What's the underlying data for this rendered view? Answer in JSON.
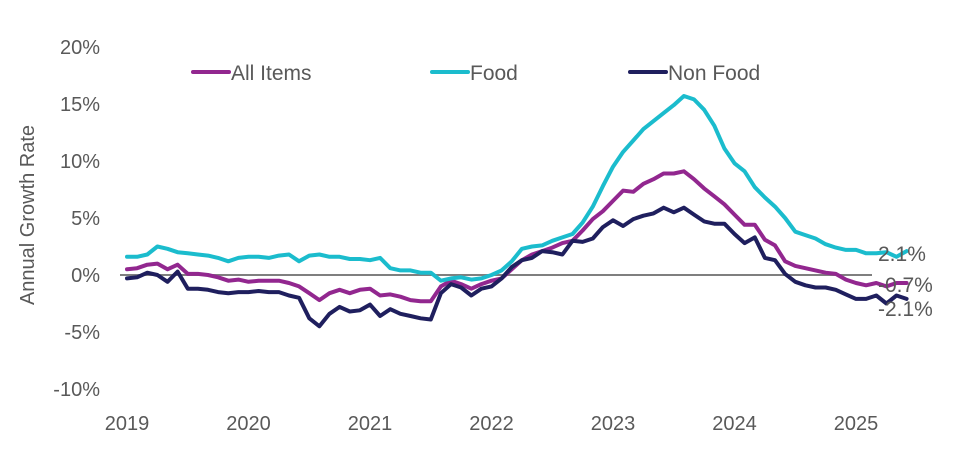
{
  "chart_data": {
    "type": "line",
    "title": "",
    "xlabel": "",
    "ylabel": "Annual Growth Rate",
    "ylim": [
      -10,
      20
    ],
    "yticks": [
      20,
      15,
      10,
      5,
      0,
      -5,
      -10
    ],
    "ytick_labels": [
      "20%",
      "15%",
      "10%",
      "5%",
      "0%",
      "-5%",
      "-10%"
    ],
    "xlim_months": [
      0,
      74
    ],
    "xticks": [
      "2019",
      "2020",
      "2021",
      "2022",
      "2023",
      "2024",
      "2025"
    ],
    "x_start": "Jan 2019",
    "x_frequency": "monthly",
    "grid": false,
    "zero_line": true,
    "legend": {
      "placement": "top",
      "orientation": "horizontal"
    },
    "series": [
      {
        "name": "All Items",
        "color": "#92278F",
        "end_label": "-0.7%",
        "values": [
          0.5,
          0.6,
          0.9,
          1.0,
          0.5,
          0.9,
          0.1,
          0.1,
          0.0,
          -0.2,
          -0.5,
          -0.4,
          -0.6,
          -0.5,
          -0.5,
          -0.5,
          -0.7,
          -1.0,
          -1.6,
          -2.2,
          -1.6,
          -1.3,
          -1.6,
          -1.3,
          -1.2,
          -1.8,
          -1.7,
          -1.9,
          -2.2,
          -2.3,
          -2.3,
          -1.0,
          -0.5,
          -0.8,
          -1.2,
          -0.8,
          -0.5,
          -0.3,
          0.5,
          1.3,
          1.8,
          2.1,
          2.4,
          2.8,
          3.0,
          3.9,
          4.9,
          5.6,
          6.5,
          7.4,
          7.3,
          8.0,
          8.4,
          8.9,
          8.9,
          9.1,
          8.4,
          7.6,
          6.9,
          6.2,
          5.3,
          4.4,
          4.4,
          3.1,
          2.6,
          1.2,
          0.8,
          0.6,
          0.4,
          0.2,
          0.1,
          -0.4,
          -0.7,
          -0.9,
          -0.7,
          -1.0,
          -0.7,
          -0.7
        ]
      },
      {
        "name": "Food",
        "color": "#1BBCCD",
        "end_label": "2.1%",
        "values": [
          1.6,
          1.6,
          1.8,
          2.5,
          2.3,
          2.0,
          1.9,
          1.8,
          1.7,
          1.5,
          1.2,
          1.5,
          1.6,
          1.6,
          1.5,
          1.7,
          1.8,
          1.2,
          1.7,
          1.8,
          1.6,
          1.6,
          1.4,
          1.4,
          1.3,
          1.5,
          0.6,
          0.4,
          0.4,
          0.2,
          0.2,
          -0.5,
          -0.3,
          -0.2,
          -0.4,
          -0.3,
          0.0,
          0.4,
          1.2,
          2.3,
          2.5,
          2.6,
          3.0,
          3.3,
          3.6,
          4.6,
          6.0,
          7.8,
          9.5,
          10.8,
          11.8,
          12.8,
          13.5,
          14.2,
          14.9,
          15.7,
          15.4,
          14.5,
          13.1,
          11.1,
          9.8,
          9.1,
          7.7,
          6.8,
          6.0,
          5.0,
          3.8,
          3.5,
          3.2,
          2.7,
          2.4,
          2.2,
          2.2,
          1.9,
          1.9,
          2.0,
          1.6,
          2.1
        ]
      },
      {
        "name": "Non Food",
        "color": "#1F1F5E",
        "end_label": "-2.1%",
        "values": [
          -0.3,
          -0.2,
          0.2,
          0.0,
          -0.6,
          0.3,
          -1.2,
          -1.2,
          -1.3,
          -1.5,
          -1.6,
          -1.5,
          -1.5,
          -1.4,
          -1.5,
          -1.5,
          -1.8,
          -2.0,
          -3.8,
          -4.5,
          -3.4,
          -2.8,
          -3.2,
          -3.1,
          -2.6,
          -3.6,
          -3.0,
          -3.4,
          -3.6,
          -3.8,
          -3.9,
          -1.6,
          -0.8,
          -1.1,
          -1.8,
          -1.2,
          -1.0,
          -0.3,
          0.7,
          1.3,
          1.5,
          2.1,
          2.0,
          1.8,
          3.0,
          2.9,
          3.2,
          4.2,
          4.8,
          4.3,
          4.9,
          5.2,
          5.4,
          5.9,
          5.5,
          5.9,
          5.3,
          4.7,
          4.5,
          4.5,
          3.6,
          2.8,
          3.3,
          1.5,
          1.3,
          0.1,
          -0.6,
          -0.9,
          -1.1,
          -1.1,
          -1.3,
          -1.7,
          -2.1,
          -2.1,
          -1.8,
          -2.5,
          -1.8,
          -2.1
        ]
      }
    ]
  }
}
